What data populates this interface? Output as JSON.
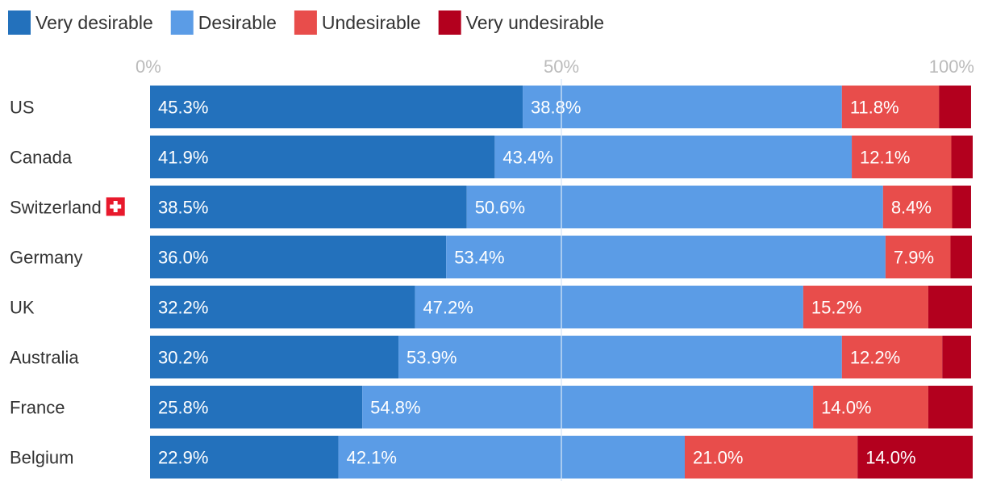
{
  "chart_data": {
    "type": "bar",
    "orientation": "horizontal",
    "stacked": true,
    "title": "",
    "xlabel": "",
    "ylabel": "",
    "xlim": [
      0,
      100
    ],
    "x_ticks": [
      {
        "value": 0,
        "label": "0%"
      },
      {
        "value": 50,
        "label": "50%"
      },
      {
        "value": 100,
        "label": "100%"
      }
    ],
    "legend_position": "top-left",
    "grid": false,
    "categories": [
      "US",
      "Canada",
      "Switzerland",
      "Germany",
      "UK",
      "Australia",
      "France",
      "Belgium"
    ],
    "category_icons": {
      "Switzerland": "swiss-flag-icon"
    },
    "series": [
      {
        "name": "Very desirable",
        "color": "#2371BC",
        "values": [
          45.3,
          41.9,
          38.5,
          36.0,
          32.2,
          30.2,
          25.8,
          22.9
        ],
        "labels": [
          "45.3%",
          "41.9%",
          "38.5%",
          "36.0%",
          "32.2%",
          "30.2%",
          "25.8%",
          "22.9%"
        ]
      },
      {
        "name": "Desirable",
        "color": "#5B9CE6",
        "values": [
          38.8,
          43.4,
          50.6,
          53.4,
          47.2,
          53.9,
          54.8,
          42.1
        ],
        "labels": [
          "38.8%",
          "43.4%",
          "50.6%",
          "53.4%",
          "47.2%",
          "53.9%",
          "54.8%",
          "42.1%"
        ]
      },
      {
        "name": "Undesirable",
        "color": "#E84D4B",
        "values": [
          11.8,
          12.1,
          8.4,
          7.9,
          15.2,
          12.2,
          14.0,
          21.0
        ],
        "labels": [
          "11.8%",
          "12.1%",
          "8.4%",
          "7.9%",
          "15.2%",
          "12.2%",
          "14.0%",
          "21.0%"
        ]
      },
      {
        "name": "Very undesirable",
        "color": "#B3001E",
        "values": [
          3.9,
          2.6,
          2.3,
          2.6,
          5.3,
          3.5,
          5.5,
          14.0
        ],
        "labels": [
          "",
          "",
          "",
          "",
          "",
          "",
          "",
          "14.0%"
        ]
      }
    ],
    "colors": {
      "label_text": "#ffffff",
      "category_text": "#333333",
      "tick_text": "#bbbbbb",
      "midline": "#d6e6f7",
      "swiss_flag": "#E8192C"
    }
  }
}
